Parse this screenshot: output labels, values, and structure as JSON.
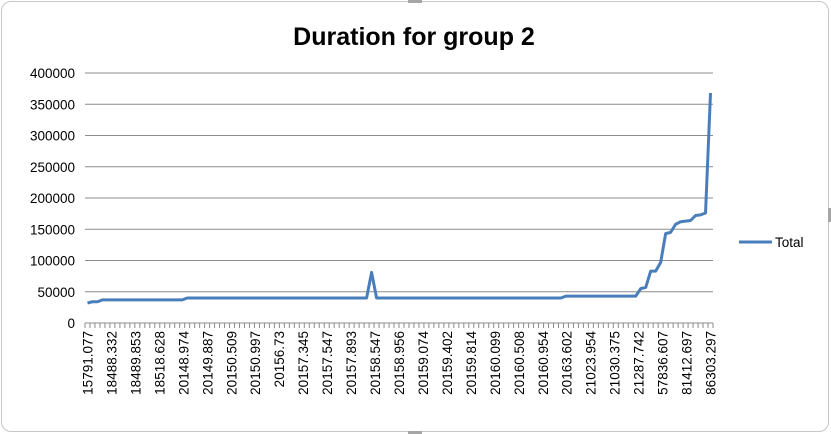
{
  "chart_data": {
    "type": "line",
    "title": "Duration for group 2",
    "xlabel": "",
    "ylabel": "",
    "ylim": [
      0,
      400000
    ],
    "y_ticks": [
      "0",
      "50000",
      "100000",
      "150000",
      "200000",
      "250000",
      "300000",
      "350000",
      "400000"
    ],
    "x_tick_labels": [
      "15791.077",
      "18488.332",
      "18489.853",
      "18518.628",
      "20148.974",
      "20149.887",
      "20150.509",
      "20150.997",
      "20156.73",
      "20157.345",
      "20157.547",
      "20157.893",
      "20158.547",
      "20158.956",
      "20159.074",
      "20159.402",
      "20159.814",
      "20160.099",
      "20160.508",
      "20160.954",
      "20163.602",
      "21023.954",
      "21030.375",
      "21287.742",
      "57836.607",
      "81412.697",
      "86303.297"
    ],
    "grid": true,
    "legend": {
      "position": "right",
      "entries": [
        "Total"
      ]
    },
    "colors": {
      "series": "#4a7ebb",
      "grid": "#8c8c8c",
      "axis": "#8c8c8c"
    },
    "n_points": 126,
    "series": [
      {
        "name": "Total",
        "values": [
          32000,
          34000,
          34000,
          37000,
          37000,
          37000,
          37000,
          37000,
          37000,
          37000,
          37000,
          37000,
          37000,
          37000,
          37000,
          37000,
          37000,
          37000,
          37000,
          37000,
          40000,
          40000,
          40000,
          40000,
          40000,
          40000,
          40000,
          40000,
          40000,
          40000,
          40000,
          40000,
          40000,
          40000,
          40000,
          40000,
          40000,
          40000,
          40000,
          40000,
          40000,
          40000,
          40000,
          40000,
          40000,
          40000,
          40000,
          40000,
          40000,
          40000,
          40000,
          40000,
          40000,
          40000,
          40000,
          40000,
          40000,
          81000,
          40000,
          40000,
          40000,
          40000,
          40000,
          40000,
          40000,
          40000,
          40000,
          40000,
          40000,
          40000,
          40000,
          40000,
          40000,
          40000,
          40000,
          40000,
          40000,
          40000,
          40000,
          40000,
          40000,
          40000,
          40000,
          40000,
          40000,
          40000,
          40000,
          40000,
          40000,
          40000,
          40000,
          40000,
          40000,
          40000,
          40000,
          40000,
          43000,
          43000,
          43000,
          43000,
          43000,
          43000,
          43000,
          43000,
          43000,
          43000,
          43000,
          43000,
          43000,
          43000,
          43000,
          55000,
          57000,
          83000,
          83000,
          97000,
          143000,
          145000,
          158000,
          162000,
          163000,
          164000,
          172000,
          173000,
          176000,
          368000
        ]
      }
    ]
  }
}
